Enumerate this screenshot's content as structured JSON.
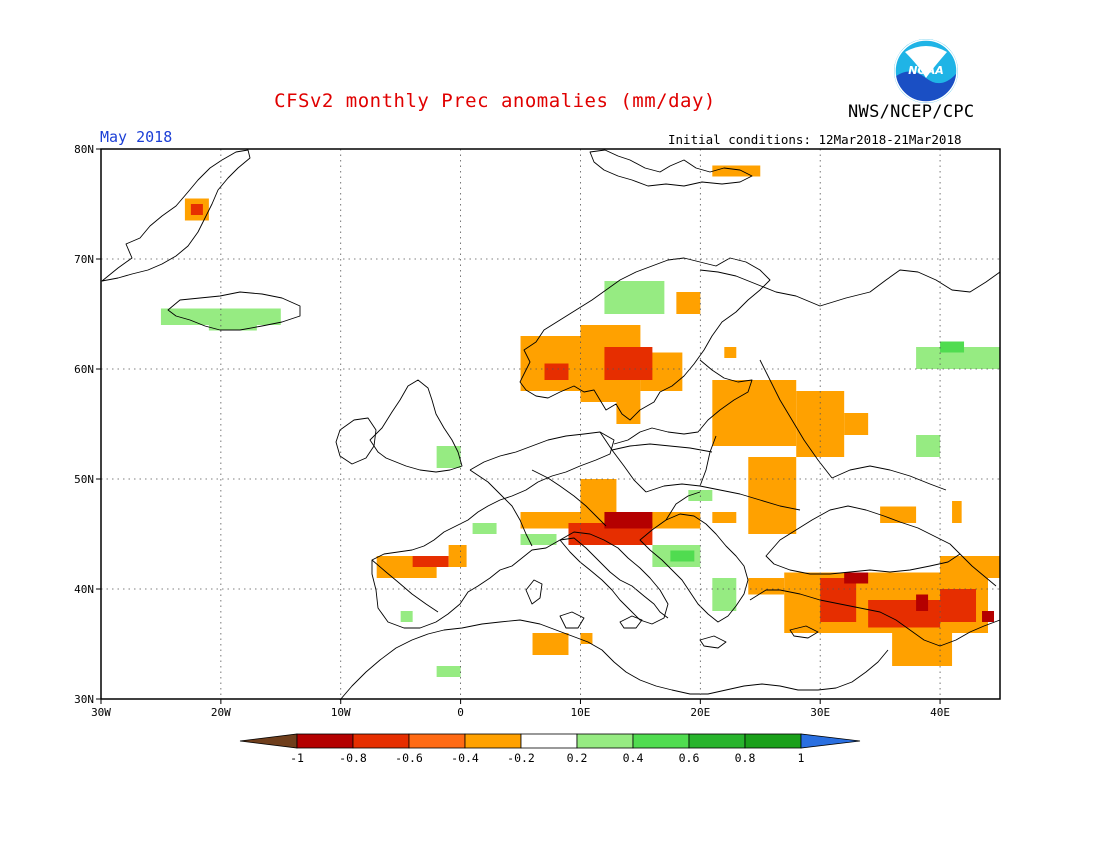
{
  "header": {
    "title": "CFSv2 monthly Prec anomalies (mm/day)",
    "organization": "NWS/NCEP/CPC",
    "period": "May 2018",
    "initial_conditions": "Initial conditions: 12Mar2018-21Mar2018",
    "logo_text": "NOAA"
  },
  "map": {
    "lon_range": [
      -30,
      45
    ],
    "lat_range": [
      30,
      80
    ],
    "lon_ticks": [
      {
        "value": -30,
        "label": "30W"
      },
      {
        "value": -20,
        "label": "20W"
      },
      {
        "value": -10,
        "label": "10W"
      },
      {
        "value": 0,
        "label": "0"
      },
      {
        "value": 10,
        "label": "10E"
      },
      {
        "value": 20,
        "label": "20E"
      },
      {
        "value": 30,
        "label": "30E"
      },
      {
        "value": 40,
        "label": "40E"
      }
    ],
    "lat_ticks": [
      {
        "value": 30,
        "label": "30N"
      },
      {
        "value": 40,
        "label": "40N"
      },
      {
        "value": 50,
        "label": "50N"
      },
      {
        "value": 60,
        "label": "60N"
      },
      {
        "value": 70,
        "label": "70N"
      },
      {
        "value": 80,
        "label": "80N"
      }
    ],
    "anomaly_cells": [
      {
        "lon0": -23,
        "lat0": 73.5,
        "lon1": -21,
        "lat1": 75.5,
        "cls": "-0.4"
      },
      {
        "lon0": -22.5,
        "lat0": 74,
        "lon1": -21.5,
        "lat1": 75,
        "cls": "-0.6"
      },
      {
        "lon0": 21,
        "lat0": 77.5,
        "lon1": 25,
        "lat1": 78.5,
        "cls": "-0.4"
      },
      {
        "lon0": -25,
        "lat0": 64,
        "lon1": -15,
        "lat1": 65.5,
        "cls": "0.4"
      },
      {
        "lon0": -21,
        "lat0": 63.5,
        "lon1": -17,
        "lat1": 64.5,
        "cls": "0.4"
      },
      {
        "lon0": 12,
        "lat0": 65,
        "lon1": 17,
        "lat1": 68,
        "cls": "0.4"
      },
      {
        "lon0": 5,
        "lat0": 58,
        "lon1": 10,
        "lat1": 63,
        "cls": "-0.4"
      },
      {
        "lon0": 10,
        "lat0": 57,
        "lon1": 15,
        "lat1": 64,
        "cls": "-0.4"
      },
      {
        "lon0": 15,
        "lat0": 58,
        "lon1": 18.5,
        "lat1": 61.5,
        "cls": "-0.4"
      },
      {
        "lon0": 18,
        "lat0": 65,
        "lon1": 20,
        "lat1": 67,
        "cls": "-0.4"
      },
      {
        "lon0": 7,
        "lat0": 59,
        "lon1": 9,
        "lat1": 60.5,
        "cls": "-0.6"
      },
      {
        "lon0": 12,
        "lat0": 59,
        "lon1": 16,
        "lat1": 62,
        "cls": "-0.6"
      },
      {
        "lon0": 13,
        "lat0": 55,
        "lon1": 15,
        "lat1": 57,
        "cls": "-0.4"
      },
      {
        "lon0": 22,
        "lat0": 61,
        "lon1": 23,
        "lat1": 62,
        "cls": "-0.4"
      },
      {
        "lon0": 21,
        "lat0": 53,
        "lon1": 28,
        "lat1": 59,
        "cls": "-0.4"
      },
      {
        "lon0": 28,
        "lat0": 52,
        "lon1": 32,
        "lat1": 58,
        "cls": "-0.4"
      },
      {
        "lon0": 32,
        "lat0": 54,
        "lon1": 34,
        "lat1": 56,
        "cls": "-0.4"
      },
      {
        "lon0": 24,
        "lat0": 45,
        "lon1": 28,
        "lat1": 52,
        "cls": "-0.4"
      },
      {
        "lon0": 5,
        "lat0": 45.5,
        "lon1": 20,
        "lat1": 47,
        "cls": "-0.4"
      },
      {
        "lon0": 10,
        "lat0": 47,
        "lon1": 13,
        "lat1": 50,
        "cls": "-0.4"
      },
      {
        "lon0": 9,
        "lat0": 44,
        "lon1": 16,
        "lat1": 46,
        "cls": "-0.6"
      },
      {
        "lon0": 12,
        "lat0": 45.5,
        "lon1": 16,
        "lat1": 47,
        "cls": "-0.8"
      },
      {
        "lon0": 21,
        "lat0": 46,
        "lon1": 23,
        "lat1": 47,
        "cls": "-0.4"
      },
      {
        "lon0": -7,
        "lat0": 41,
        "lon1": -2,
        "lat1": 43,
        "cls": "-0.4"
      },
      {
        "lon0": -4,
        "lat0": 42,
        "lon1": -1,
        "lat1": 43,
        "cls": "-0.6"
      },
      {
        "lon0": -1,
        "lat0": 42,
        "lon1": 0.5,
        "lat1": 44,
        "cls": "-0.4"
      },
      {
        "lon0": 6,
        "lat0": 34,
        "lon1": 9,
        "lat1": 36,
        "cls": "-0.4"
      },
      {
        "lon0": 10,
        "lat0": 35,
        "lon1": 11,
        "lat1": 36,
        "cls": "-0.4"
      },
      {
        "lon0": 24,
        "lat0": 39.5,
        "lon1": 27,
        "lat1": 41,
        "cls": "-0.4"
      },
      {
        "lon0": 27,
        "lat0": 36,
        "lon1": 44,
        "lat1": 41.5,
        "cls": "-0.4"
      },
      {
        "lon0": 36,
        "lat0": 33,
        "lon1": 41,
        "lat1": 36,
        "cls": "-0.4"
      },
      {
        "lon0": 40,
        "lat0": 41,
        "lon1": 45,
        "lat1": 43,
        "cls": "-0.4"
      },
      {
        "lon0": 30,
        "lat0": 37,
        "lon1": 33,
        "lat1": 41,
        "cls": "-0.6"
      },
      {
        "lon0": 34,
        "lat0": 36.5,
        "lon1": 40,
        "lat1": 39,
        "cls": "-0.6"
      },
      {
        "lon0": 40,
        "lat0": 37,
        "lon1": 43,
        "lat1": 40,
        "cls": "-0.6"
      },
      {
        "lon0": 32,
        "lat0": 40.5,
        "lon1": 34,
        "lat1": 41.5,
        "cls": "-0.8"
      },
      {
        "lon0": 38,
        "lat0": 38,
        "lon1": 39,
        "lat1": 39.5,
        "cls": "-0.8"
      },
      {
        "lon0": 43.5,
        "lat0": 37,
        "lon1": 44.5,
        "lat1": 38,
        "cls": "-0.8"
      },
      {
        "lon0": 35,
        "lat0": 46,
        "lon1": 38,
        "lat1": 47.5,
        "cls": "-0.4"
      },
      {
        "lon0": 41,
        "lat0": 46,
        "lon1": 41.8,
        "lat1": 48,
        "cls": "-0.4"
      },
      {
        "lon0": 38,
        "lat0": 60,
        "lon1": 45,
        "lat1": 62,
        "cls": "0.4"
      },
      {
        "lon0": 40,
        "lat0": 61.5,
        "lon1": 42,
        "lat1": 62.5,
        "cls": "0.6"
      },
      {
        "lon0": 38,
        "lat0": 52,
        "lon1": 40,
        "lat1": 54,
        "cls": "0.4"
      },
      {
        "lon0": -2,
        "lat0": 51,
        "lon1": 0,
        "lat1": 53,
        "cls": "0.4"
      },
      {
        "lon0": 1,
        "lat0": 45,
        "lon1": 3,
        "lat1": 46,
        "cls": "0.4"
      },
      {
        "lon0": 5,
        "lat0": 44,
        "lon1": 8,
        "lat1": 45,
        "cls": "0.4"
      },
      {
        "lon0": 16,
        "lat0": 42,
        "lon1": 20,
        "lat1": 44,
        "cls": "0.4"
      },
      {
        "lon0": 17.5,
        "lat0": 42.5,
        "lon1": 19.5,
        "lat1": 43.5,
        "cls": "0.6"
      },
      {
        "lon0": 21,
        "lat0": 38,
        "lon1": 23,
        "lat1": 41,
        "cls": "0.4"
      },
      {
        "lon0": 19,
        "lat0": 48,
        "lon1": 21,
        "lat1": 49,
        "cls": "0.4"
      },
      {
        "lon0": -5,
        "lat0": 37,
        "lon1": -4,
        "lat1": 38,
        "cls": "0.4"
      },
      {
        "lon0": -2,
        "lat0": 32,
        "lon1": 0,
        "lat1": 33,
        "cls": "0.4"
      }
    ]
  },
  "colorbar": {
    "boundaries": [
      "-1",
      "-0.8",
      "-0.6",
      "-0.4",
      "-0.2",
      "0.2",
      "0.4",
      "0.6",
      "0.8",
      "1"
    ],
    "colors": {
      "below_min": "#6f3e1c",
      "-0.8": "#b40000",
      "-0.6": "#e62e00",
      "-0.4": "#ff6a14",
      "-0.2": "#ffa100",
      "neutral": "#ffffff",
      "0.4": "#96eb82",
      "0.6": "#50dc50",
      "0.8": "#28b42d",
      "1.0": "#1aa01a",
      "above_max": "#2a6fe0"
    }
  }
}
